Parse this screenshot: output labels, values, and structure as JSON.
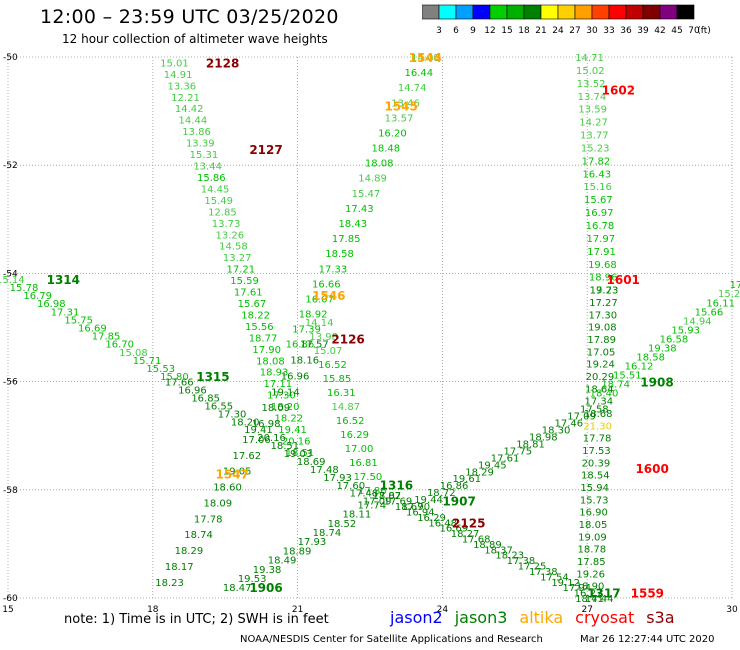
{
  "title": "12:00 – 23:59 UTC 03/25/2020",
  "subtitle": "12 hour collection of altimeter wave heights",
  "note": "note: 1) Time is in UTC; 2) SWH is in feet",
  "footer_credit": "NOAA/NESDIS Center for Satellite Applications and Research",
  "footer_time": "Mar 26 12:27:44 UTC 2020",
  "legend": [
    {
      "name": "jason2",
      "color": "#0000ff"
    },
    {
      "name": "jason3",
      "color": "#008000"
    },
    {
      "name": "altika",
      "color": "#ffa500"
    },
    {
      "name": "cryosat",
      "color": "#ff0000"
    },
    {
      "name": "s3a",
      "color": "#8b0000"
    }
  ],
  "colorbar": {
    "labels": [
      "3",
      "6",
      "9",
      "12",
      "15",
      "18",
      "21",
      "24",
      "27",
      "30",
      "33",
      "36",
      "39",
      "42",
      "45",
      "70",
      "(ft)"
    ],
    "colors": [
      "#808080",
      "#00ffff",
      "#00a0ff",
      "#0000ff",
      "#00d000",
      "#00b000",
      "#008000",
      "#ffff00",
      "#ffd000",
      "#ffa000",
      "#ff4000",
      "#ff0000",
      "#c00000",
      "#800000",
      "#800080",
      "#000000"
    ]
  },
  "chart_data": {
    "type": "scatter",
    "xlim": [
      15,
      30
    ],
    "ylim": [
      -60,
      -50
    ],
    "xticks": [
      "15",
      "18",
      "21",
      "24",
      "27",
      "30"
    ],
    "yticks": [
      "-50",
      "-52",
      "-54",
      "-56",
      "-58",
      "-60"
    ],
    "grid": true,
    "pass_labels": [
      {
        "text": "2128",
        "lon": 19.1,
        "lat": -50.1,
        "color": "#8b0000"
      },
      {
        "text": "2127",
        "lon": 20.0,
        "lat": -51.7,
        "color": "#8b0000"
      },
      {
        "text": "2126",
        "lon": 21.7,
        "lat": -55.2,
        "color": "#8b0000"
      },
      {
        "text": "2125",
        "lon": 24.2,
        "lat": -58.6,
        "color": "#8b0000"
      },
      {
        "text": "1544",
        "lon": 23.3,
        "lat": -50.0,
        "color": "#ffa500"
      },
      {
        "text": "1545",
        "lon": 22.8,
        "lat": -50.9,
        "color": "#ffa500"
      },
      {
        "text": "1546",
        "lon": 21.3,
        "lat": -54.4,
        "color": "#ffa500"
      },
      {
        "text": "1547",
        "lon": 19.3,
        "lat": -57.7,
        "color": "#ffa500"
      },
      {
        "text": "1602",
        "lon": 27.3,
        "lat": -50.6,
        "color": "#ff0000"
      },
      {
        "text": "1601",
        "lon": 27.4,
        "lat": -54.1,
        "color": "#ff0000"
      },
      {
        "text": "1600",
        "lon": 28.0,
        "lat": -57.6,
        "color": "#ff0000"
      },
      {
        "text": "1559",
        "lon": 27.9,
        "lat": -59.9,
        "color": "#ff0000"
      },
      {
        "text": "1314",
        "lon": 15.8,
        "lat": -54.1,
        "color": "#008000"
      },
      {
        "text": "1315",
        "lon": 18.9,
        "lat": -55.9,
        "color": "#008000"
      },
      {
        "text": "1316",
        "lon": 22.7,
        "lat": -57.9,
        "color": "#008000"
      },
      {
        "text": "1317",
        "lon": 27.0,
        "lat": -59.9,
        "color": "#008000"
      },
      {
        "text": "1906",
        "lon": 20.0,
        "lat": -59.8,
        "color": "#008000"
      },
      {
        "text": "1907",
        "lon": 24.0,
        "lat": -58.2,
        "color": "#008000"
      },
      {
        "text": "1908",
        "lon": 28.1,
        "lat": -56.0,
        "color": "#008000"
      }
    ],
    "tracks": [
      {
        "name": "2128",
        "lon": [
          18.4,
          21.0
        ],
        "lat": [
          -50.1,
          -57.3
        ],
        "color": "#00c000",
        "values": [
          "15.01",
          "14.91",
          "13.36",
          "12.21",
          "14.42",
          "14.44",
          "13.86",
          "13.39",
          "15.31",
          "13.44",
          "15.86",
          "14.45",
          "15.49",
          "12.85",
          "13.73",
          "13.26",
          "14.58",
          "13.27",
          "17.21",
          "15.59",
          "17.61",
          "15.67",
          "18.22",
          "15.56",
          "18.77",
          "17.90",
          "18.08",
          "18.93",
          "17.11",
          "17.30",
          "18.20",
          "18.22",
          "19.41",
          "20.16",
          "18.51"
        ]
      },
      {
        "name": "2127",
        "lon": [
          21.4,
          22.5
        ],
        "lat": [
          -54.9,
          -58.0
        ],
        "color": "#00c000",
        "values": [
          "14.14",
          "13.98",
          "15.07",
          "16.52",
          "15.85",
          "16.31",
          "14.87",
          "16.52",
          "16.29",
          "17.00",
          "16.81",
          "17.50",
          "17.86"
        ]
      },
      {
        "name": "1544",
        "lon": [
          23.6,
          21.0
        ],
        "lat": [
          -50.0,
          -55.3
        ],
        "color": "#00c000",
        "values": [
          "14.08",
          "16.44",
          "14.74",
          "13.46",
          "13.57",
          "16.20",
          "18.48",
          "18.08",
          "14.89",
          "15.47",
          "17.43",
          "18.43",
          "17.85",
          "18.58",
          "17.33",
          "16.66",
          "16.07",
          "18.92",
          "17.39",
          "16.86"
        ]
      },
      {
        "name": "1545",
        "lon": [
          21.3,
          18.3
        ],
        "lat": [
          -55.3,
          -59.7
        ],
        "color": "#008000",
        "values": [
          "17.57",
          "18.16",
          "16.96",
          "19.14",
          "18.09",
          "16.98",
          "17.06",
          "17.62",
          "19.05",
          "18.60",
          "18.09",
          "17.78",
          "18.74",
          "18.29",
          "18.17",
          "18.23"
        ]
      },
      {
        "name": "1602",
        "lon": [
          27.0,
          27.3
        ],
        "lat": [
          -50.0,
          -54.3
        ],
        "color": "#00c000",
        "values": [
          "14.71",
          "15.02",
          "13.52",
          "13.74",
          "13.59",
          "14.27",
          "13.77",
          "15.23",
          "17.82",
          "16.43",
          "15.16",
          "15.67",
          "16.97",
          "16.78",
          "17.97",
          "17.91",
          "19.68",
          "18.96",
          "17.73"
        ]
      },
      {
        "name": "1601",
        "lon": [
          27.3,
          27.0
        ],
        "lat": [
          -54.3,
          -60.0
        ],
        "color": "#008000",
        "values": [
          "19.23",
          "17.27",
          "17.30",
          "19.08",
          "17.89",
          "17.05",
          "19.24",
          "20.29",
          "18.64",
          "17.34",
          "18.68",
          "21.30",
          "17.78",
          "17.53",
          "20.39",
          "18.54",
          "15.94",
          "15.73",
          "16.90",
          "18.05",
          "19.09",
          "18.78",
          "17.85",
          "19.26",
          "18.90",
          "18.41"
        ]
      },
      {
        "name": "1314",
        "lon": [
          15.0,
          18.4
        ],
        "lat": [
          -54.1,
          -55.9
        ],
        "color": "#00c000",
        "values": [
          "15.14",
          "15.78",
          "16.79",
          "16.98",
          "17.31",
          "15.75",
          "16.69",
          "17.85",
          "16.70",
          "15.08",
          "15.71",
          "15.53",
          "15.80"
        ]
      },
      {
        "name": "1315",
        "lon": [
          18.5,
          22.6
        ],
        "lat": [
          -56.0,
          -58.2
        ],
        "color": "#008000",
        "values": [
          "17.66",
          "16.96",
          "16.85",
          "16.55",
          "17.30",
          "18.20",
          "19.41",
          "20.16",
          "18.51",
          "19.03",
          "18.69",
          "17.48",
          "17.93",
          "17.60",
          "17.48",
          "17.09"
        ]
      },
      {
        "name": "1316",
        "lon": [
          22.8,
          27.2
        ],
        "lat": [
          -58.1,
          -60.0
        ],
        "color": "#008000",
        "values": [
          "17.82",
          "17.69",
          "18.67",
          "16.94",
          "16.29",
          "16.48",
          "16.69",
          "18.27",
          "17.68",
          "18.89",
          "18.37",
          "18.23",
          "17.38",
          "17.25",
          "17.38",
          "17.54",
          "19.12",
          "17.94",
          "16.27",
          "17.44"
        ]
      },
      {
        "name": "1906",
        "lon": [
          19.7,
          22.8
        ],
        "lat": [
          -59.8,
          -58.1
        ],
        "color": "#008000",
        "values": [
          "18.47",
          "19.53",
          "19.38",
          "18.49",
          "18.89",
          "17.93",
          "18.74",
          "18.52",
          "18.11",
          "17.74",
          "18.07"
        ]
      },
      {
        "name": "1907",
        "lon": [
          23.4,
          27.1
        ],
        "lat": [
          -58.3,
          -56.5
        ],
        "color": "#008000",
        "values": [
          "17.90",
          "19.44",
          "18.72",
          "16.86",
          "19.61",
          "18.29",
          "19.45",
          "17.61",
          "17.75",
          "18.81",
          "18.98",
          "18.30",
          "17.46",
          "17.09",
          "17.58"
        ]
      },
      {
        "name": "1908",
        "lon": [
          27.3,
          30.2
        ],
        "lat": [
          -56.2,
          -54.2
        ],
        "color": "#00c000",
        "values": [
          "18.40",
          "18.74",
          "15.51",
          "16.12",
          "18.58",
          "19.38",
          "16.58",
          "15.93",
          "14.94",
          "15.66",
          "16.11",
          "15.24",
          "17.34"
        ]
      }
    ]
  }
}
